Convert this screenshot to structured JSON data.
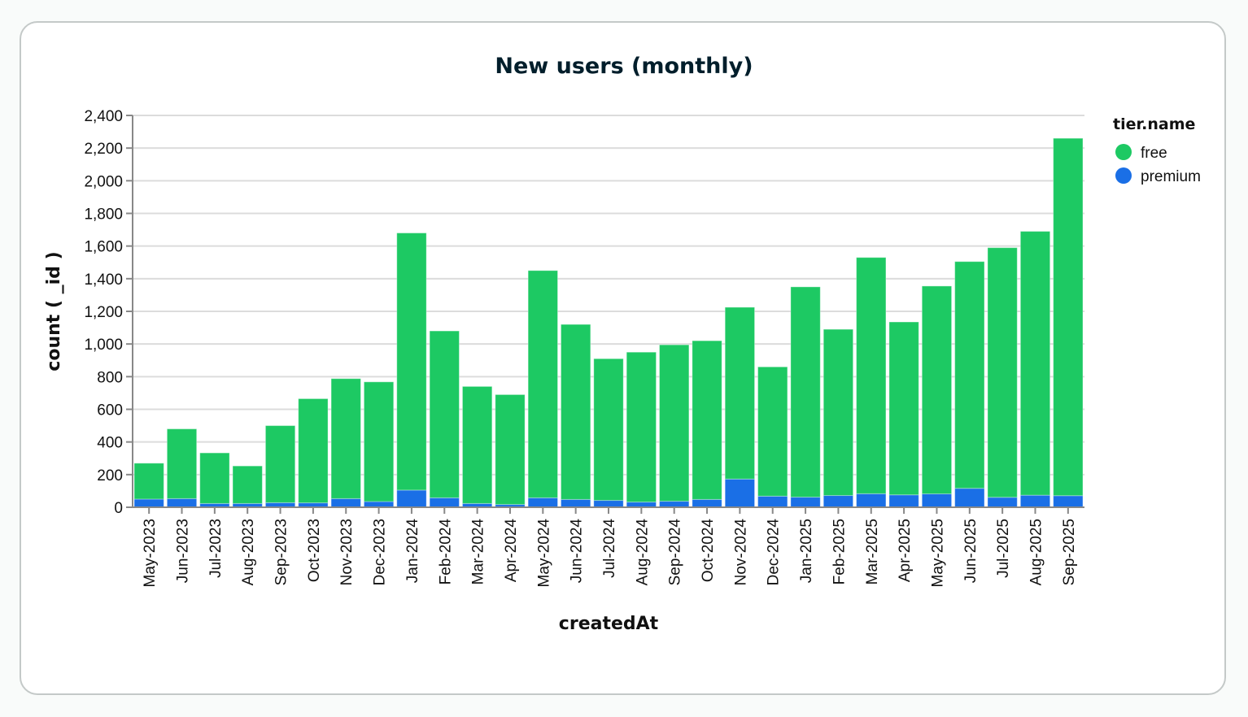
{
  "chart_data": {
    "type": "bar",
    "stacked": true,
    "title": "New users (monthly)",
    "xlabel": "createdAt",
    "ylabel": "count ( _id )",
    "ylim": [
      0,
      2400
    ],
    "yticks": [
      0,
      200,
      400,
      600,
      800,
      1000,
      1200,
      1400,
      1600,
      1800,
      2000,
      2200,
      2400
    ],
    "ytick_labels": [
      "0",
      "200",
      "400",
      "600",
      "800",
      "1,000",
      "1,200",
      "1,400",
      "1,600",
      "1,800",
      "2,000",
      "2,200",
      "2,400"
    ],
    "grid": true,
    "legend": {
      "title": "tier.name",
      "placement": "top-right"
    },
    "categories": [
      "May-2023",
      "Jun-2023",
      "Jul-2023",
      "Aug-2023",
      "Sep-2023",
      "Oct-2023",
      "Nov-2023",
      "Dec-2023",
      "Jan-2024",
      "Feb-2024",
      "Mar-2024",
      "Apr-2024",
      "May-2024",
      "Jun-2024",
      "Jul-2024",
      "Aug-2024",
      "Sep-2024",
      "Oct-2024",
      "Nov-2024",
      "Dec-2024",
      "Jan-2025",
      "Feb-2025",
      "Mar-2025",
      "Apr-2025",
      "May-2025",
      "Jun-2025",
      "Jul-2025",
      "Aug-2025",
      "Sep-2025"
    ],
    "series": [
      {
        "name": "premium",
        "color": "#1a6fe6",
        "values": [
          50,
          53,
          23,
          23,
          28,
          27,
          53,
          35,
          105,
          58,
          23,
          17,
          58,
          48,
          42,
          32,
          37,
          48,
          173,
          68,
          62,
          72,
          83,
          76,
          82,
          116,
          61,
          74,
          71
        ]
      },
      {
        "name": "free",
        "color": "#1dc963",
        "values": [
          220,
          427,
          310,
          230,
          472,
          638,
          735,
          733,
          1575,
          1022,
          717,
          673,
          1392,
          1072,
          868,
          918,
          958,
          972,
          1052,
          792,
          1288,
          1018,
          1447,
          1059,
          1273,
          1389,
          1529,
          1616,
          2189
        ]
      }
    ],
    "totals": [
      270,
      480,
      333,
      253,
      500,
      665,
      788,
      768,
      1680,
      1080,
      740,
      690,
      1450,
      1120,
      910,
      950,
      995,
      1020,
      1225,
      860,
      1350,
      1090,
      1530,
      1135,
      1355,
      1505,
      1590,
      1690,
      2260
    ],
    "legend_order": [
      "free",
      "premium"
    ]
  }
}
